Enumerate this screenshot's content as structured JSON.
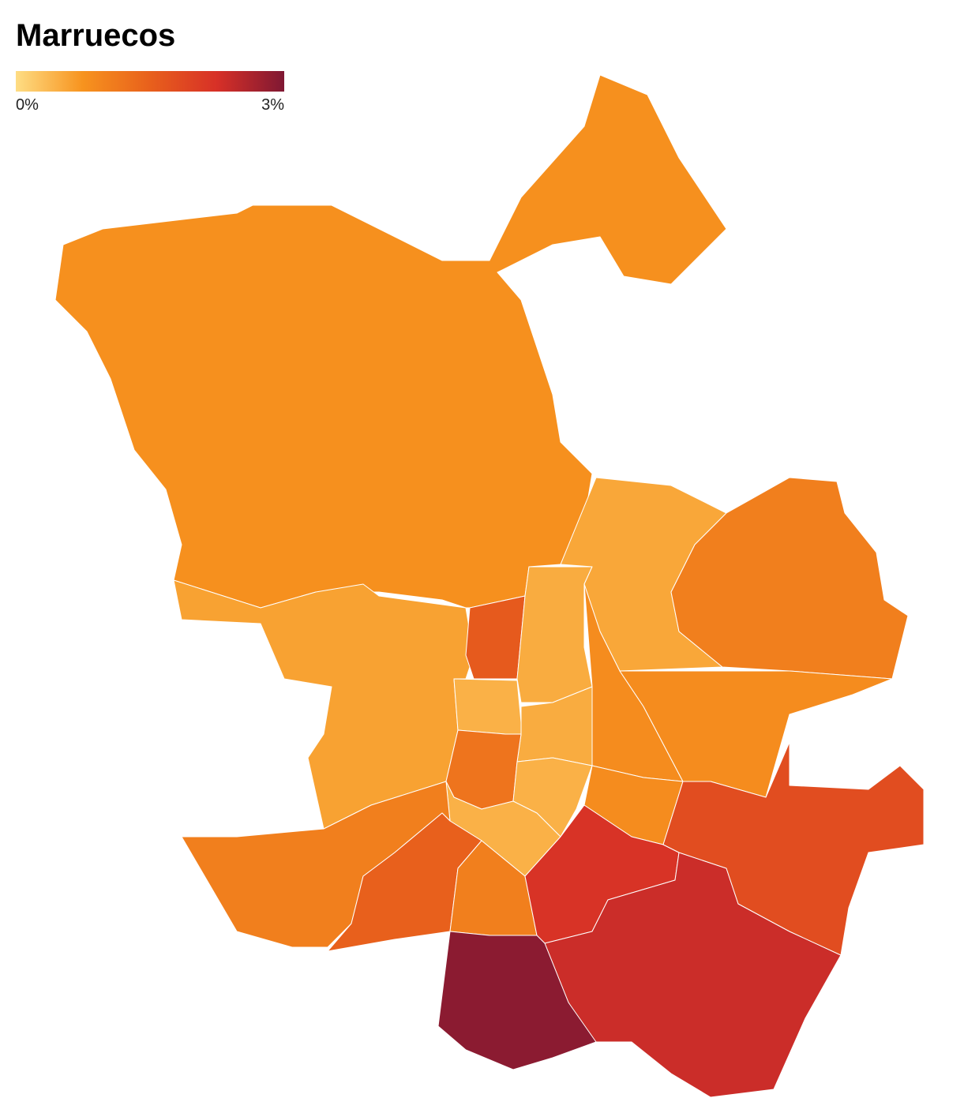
{
  "chart_data": {
    "type": "choropleth",
    "title": "Marruecos",
    "legend": {
      "range": [
        0,
        3
      ],
      "ticks": [
        {
          "value": 0,
          "label": "0%"
        },
        {
          "value": 3,
          "label": "3%"
        }
      ]
    },
    "colorscale": [
      "#fedd84",
      "#f7931e",
      "#e8601c",
      "#d73027",
      "#7f1833"
    ],
    "values": [
      0.8,
      0.6,
      1.6,
      0.5,
      0.55,
      1.05,
      0.45,
      0.5,
      0.85,
      0.85,
      1.2,
      0.45,
      0.85,
      0.45,
      1.05,
      1.5,
      1.05,
      2.2,
      2.35,
      1.8,
      2.9
    ]
  }
}
